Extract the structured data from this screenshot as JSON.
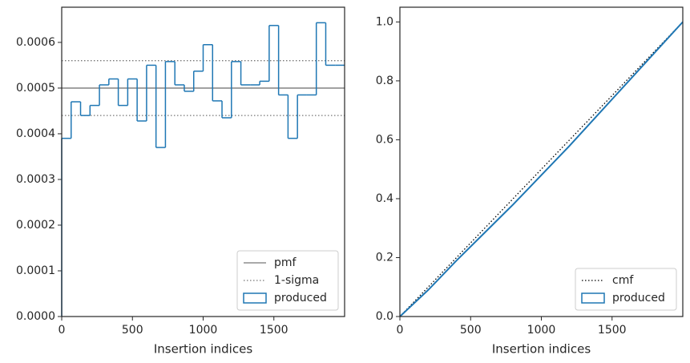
{
  "chart_data": [
    {
      "type": "histogram",
      "xlabel": "Insertion indices",
      "bins": [
        0,
        66.7,
        133.3,
        200,
        266.7,
        333.3,
        400,
        466.7,
        533.3,
        600,
        666.7,
        733.3,
        800,
        866.7,
        933.3,
        1000,
        1066.7,
        1133.3,
        1200,
        1266.7,
        1333.3,
        1400,
        1466.7,
        1533.3,
        1600,
        1666.7,
        1733.3,
        1800,
        1866.7,
        1933.3,
        2000
      ],
      "values": [
        0.00039,
        0.00047,
        0.00044,
        0.000462,
        0.000507,
        0.00052,
        0.000462,
        0.00052,
        0.000428,
        0.00055,
        0.00037,
        0.000558,
        0.000507,
        0.000493,
        0.000537,
        0.000595,
        0.000472,
        0.000435,
        0.000558,
        0.000507,
        0.000507,
        0.000515,
        0.000637,
        0.000485,
        0.00039,
        0.000485,
        0.000485,
        0.000643,
        0.00055,
        0.00055
      ],
      "name": "produced",
      "color": "#1f77b4",
      "hlines": [
        {
          "name": "pmf",
          "color": "#777777",
          "style": "solid",
          "values": [
            0.0005
          ]
        },
        {
          "name": "1-sigma",
          "color": "#777777",
          "style": "dotted",
          "values": [
            0.00044,
            0.00056
          ]
        }
      ],
      "xlim": [
        0,
        2000
      ],
      "xticks": [
        0,
        500,
        1000,
        1500
      ],
      "ylim": [
        0,
        0.000677
      ],
      "yticks": [
        {
          "value": 0,
          "label": "0.0000"
        },
        {
          "value": 0.0001,
          "label": "0.0001"
        },
        {
          "value": 0.0002,
          "label": "0.0002"
        },
        {
          "value": 0.0003,
          "label": "0.0003"
        },
        {
          "value": 0.0004,
          "label": "0.0004"
        },
        {
          "value": 0.0005,
          "label": "0.0005"
        },
        {
          "value": 0.0006,
          "label": "0.0006"
        }
      ],
      "legend": "lower right"
    },
    {
      "type": "line",
      "xlabel": "Insertion indices",
      "x": [
        0,
        200,
        400,
        600,
        800,
        1000,
        1200,
        1400,
        1600,
        1800,
        2000
      ],
      "series": [
        {
          "name": "cmf",
          "color": "#000000",
          "style": "dotted",
          "values": [
            0,
            0.1,
            0.2,
            0.3,
            0.4,
            0.5,
            0.6,
            0.7,
            0.8,
            0.9,
            1.0
          ]
        },
        {
          "name": "produced",
          "color": "#1f77b4",
          "style": "patch",
          "values": [
            0,
            0.09,
            0.19,
            0.285,
            0.38,
            0.48,
            0.58,
            0.685,
            0.79,
            0.895,
            1.0
          ]
        }
      ],
      "xlim": [
        0,
        2000
      ],
      "xticks": [
        0,
        500,
        1000,
        1500
      ],
      "ylim": [
        0,
        1.05
      ],
      "yticks": [
        {
          "value": 0,
          "label": "0.0"
        },
        0.2,
        0.4,
        0.6,
        0.8,
        {
          "value": 1,
          "label": "1.0"
        }
      ],
      "legend": "lower right"
    }
  ]
}
